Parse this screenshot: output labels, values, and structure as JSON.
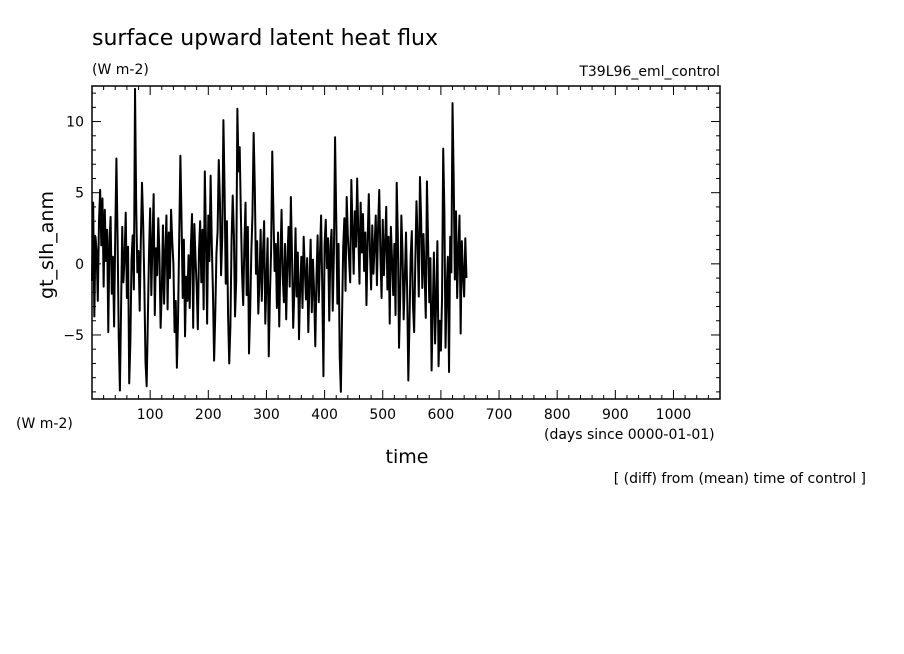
{
  "chart_data": {
    "type": "line",
    "title": "surface upward latent heat flux",
    "units": "(W m-2)",
    "run_name": "T39L96_eml_control",
    "ylabel": "gt_slh_anm",
    "y_units": "(W m-2)",
    "xlabel": "time",
    "x_units": "(days since 0000-01-01)",
    "note": "[ (diff) from (mean) time of control ]",
    "xlim": [
      0,
      1080
    ],
    "ylim": [
      -9.5,
      12.5
    ],
    "x_ticks": [
      100,
      200,
      300,
      400,
      500,
      600,
      700,
      800,
      900,
      1000
    ],
    "y_ticks": [
      -5,
      0,
      5,
      10
    ],
    "grid": false,
    "series": [
      {
        "x_start": 0,
        "x_step": 2,
        "values": [
          -1.2,
          4.3,
          -3.7,
          1.9,
          0.8,
          -2.6,
          3.0,
          5.2,
          1.3,
          4.6,
          -1.6,
          3.8,
          0.2,
          2.4,
          -4.8,
          1.6,
          3.3,
          -2.1,
          0.5,
          -4.4,
          2.1,
          7.4,
          1.7,
          -5.2,
          -8.9,
          -3.1,
          2.6,
          -1.3,
          0.4,
          3.6,
          -2.4,
          1.2,
          -8.4,
          -5.5,
          0.3,
          2.0,
          -1.8,
          12.3,
          4.1,
          -0.6,
          0.9,
          -3.3,
          1.7,
          5.7,
          2.8,
          -1.4,
          -6.9,
          -8.6,
          -4.0,
          0.7,
          3.9,
          -2.2,
          1.5,
          4.9,
          -3.6,
          1.1,
          -0.8,
          3.2,
          0.6,
          -4.5,
          -1.9,
          2.7,
          -2.8,
          0.8,
          3.4,
          -3.2,
          2.2,
          -1.0,
          3.8,
          1.6,
          0.0,
          -4.8,
          -2.6,
          -7.3,
          -3.8,
          1.9,
          7.6,
          3.1,
          -2.4,
          1.7,
          -5.1,
          -0.9,
          -2.6,
          0.6,
          -3.1,
          1.2,
          3.5,
          -4.5,
          2.8,
          0.4,
          -1.6,
          -4.6,
          0.9,
          3.0,
          -1.3,
          2.4,
          -3.2,
          6.5,
          1.8,
          -4.2,
          3.4,
          0.2,
          6.2,
          1.4,
          -2.0,
          -6.8,
          -3.5,
          0.7,
          2.3,
          7.3,
          4.4,
          -0.8,
          1.9,
          10.1,
          5.2,
          -1.4,
          3.0,
          -3.6,
          -7.0,
          -4.4,
          1.6,
          4.8,
          2.1,
          -3.7,
          -1.2,
          10.9,
          6.5,
          8.2,
          3.5,
          -0.6,
          -2.9,
          1.3,
          4.3,
          -2.2,
          2.6,
          -6.3,
          -3.4,
          0.8,
          3.5,
          9.2,
          5.4,
          -0.7,
          1.6,
          -3.5,
          -1.1,
          2.4,
          -2.6,
          0.7,
          3.0,
          -4.2,
          -1.3,
          1.8,
          -6.5,
          -2.2,
          0.9,
          7.9,
          3.6,
          -0.5,
          1.4,
          -3.1,
          2.2,
          -4.4,
          0.3,
          3.8,
          -0.9,
          -2.7,
          1.4,
          -3.9,
          0.2,
          2.6,
          -1.6,
          4.7,
          0.5,
          -4.5,
          -1.9,
          2.5,
          -2.3,
          0.8,
          -5.3,
          -1.6,
          0.5,
          -3.1,
          1.9,
          -0.4,
          -2.5,
          0.4,
          -4.8,
          -1.3,
          1.7,
          -3.4,
          0.3,
          -2.0,
          -5.8,
          -1.1,
          2.0,
          -2.7,
          0.6,
          3.4,
          -1.8,
          -7.9,
          1.4,
          3.1,
          -0.3,
          1.8,
          -4.0,
          1.1,
          2.4,
          -3.3,
          0.7,
          8.9,
          3.3,
          -2.8,
          1.4,
          -6.5,
          -9.0,
          -3.7,
          1.2,
          3.2,
          -1.9,
          4.7,
          2.0,
          0.4,
          -1.3,
          5.9,
          2.6,
          -0.7,
          3.7,
          1.2,
          6.0,
          2.2,
          -1.4,
          4.3,
          0.8,
          3.5,
          -0.5,
          2.2,
          -2.9,
          1.6,
          4.9,
          0.9,
          -1.8,
          2.7,
          -0.7,
          1.3,
          3.4,
          -1.5,
          2.6,
          5.2,
          0.6,
          -2.4,
          3.1,
          -0.8,
          1.4,
          4.0,
          -1.8,
          1.9,
          -4.2,
          2.6,
          0.3,
          -2.2,
          1.4,
          -3.6,
          5.7,
          1.9,
          -5.9,
          -2.4,
          3.4,
          0.8,
          -3.9,
          -1.1,
          2.2,
          -1.9,
          -8.2,
          -4.1,
          0.5,
          2.3,
          -2.9,
          -4.8,
          0.1,
          4.4,
          1.5,
          -2.3,
          6.1,
          3.2,
          -1.7,
          2.1,
          -0.7,
          -3.8,
          5.8,
          1.5,
          -2.7,
          0.4,
          -7.5,
          -3.3,
          0.8,
          -5.6,
          -2.5,
          1.6,
          -7.2,
          -4.0,
          -6.1,
          -2.4,
          8.1,
          3.7,
          -5.9,
          -1.8,
          0.5,
          -7.6,
          1.9,
          -0.6,
          11.3,
          6.0,
          -1.1,
          3.7,
          -2.4,
          0.9,
          3.4,
          -4.9,
          1.6,
          -0.7,
          -2.3,
          1.8,
          -1.0
        ]
      }
    ]
  }
}
